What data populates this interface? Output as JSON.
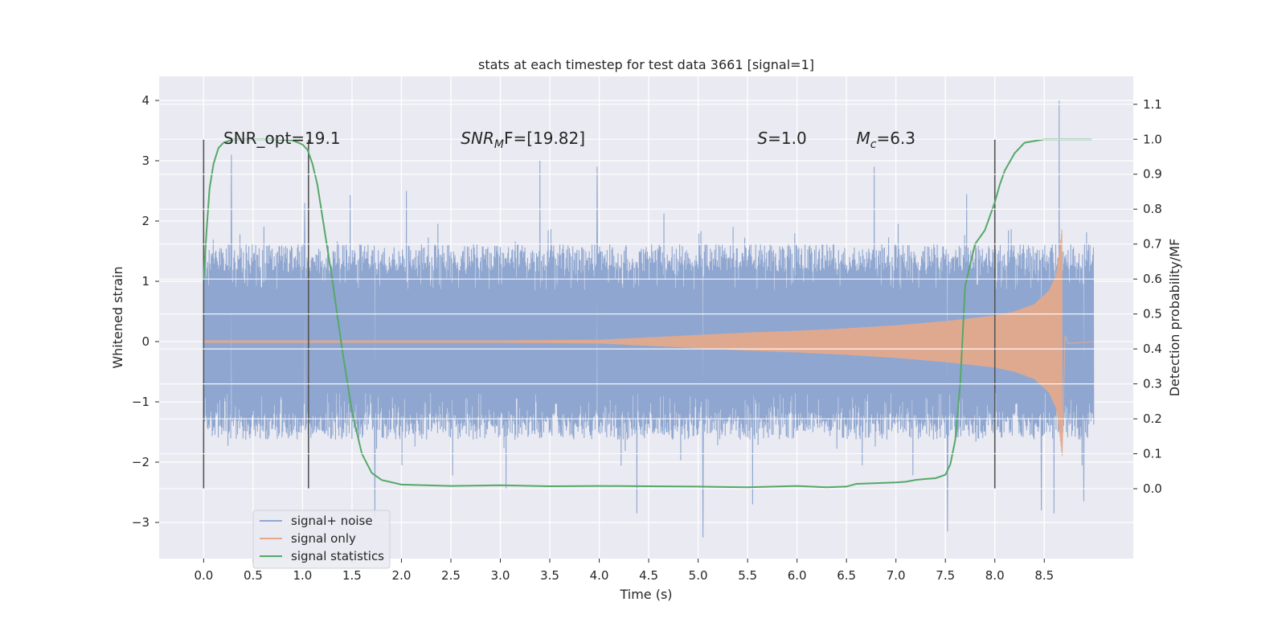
{
  "chart_data": {
    "type": "line",
    "title": "stats at each timestep for test data 3661 [signal=1]",
    "xlabel": "Time (s)",
    "ylabel": "Whitened strain",
    "ylabel_right": "Detection probability/MF",
    "xlim": [
      -0.45,
      9.4
    ],
    "ylim": [
      -3.6,
      4.4
    ],
    "ylim_right": [
      -0.2,
      1.18
    ],
    "x_ticks": [
      0.0,
      0.5,
      1.0,
      1.5,
      2.0,
      2.5,
      3.0,
      3.5,
      4.0,
      4.5,
      5.0,
      5.5,
      6.0,
      6.5,
      7.0,
      7.5,
      8.0,
      8.5
    ],
    "x_tick_labels": [
      "0.0",
      "0.5",
      "1.0",
      "1.5",
      "2.0",
      "2.5",
      "3.0",
      "3.5",
      "4.0",
      "4.5",
      "5.0",
      "5.5",
      "6.0",
      "6.5",
      "7.0",
      "7.5",
      "8.0",
      "8.5"
    ],
    "y_ticks": [
      4,
      3,
      2,
      1,
      0,
      -1,
      -2,
      -3
    ],
    "y_tick_labels": [
      "4",
      "3",
      "2",
      "1",
      "0",
      "−1",
      "−2",
      "−3"
    ],
    "y_right_ticks": [
      1.1,
      1.0,
      0.9,
      0.8,
      0.7,
      0.6,
      0.5,
      0.4,
      0.3,
      0.2,
      0.1,
      0.0
    ],
    "y_right_tick_labels": [
      "1.1",
      "1.0",
      "0.9",
      "0.8",
      "0.7",
      "0.6",
      "0.5",
      "0.4",
      "0.3",
      "0.2",
      "0.1",
      "0.0"
    ],
    "grid": true,
    "legend_position": "lower-left",
    "noise": {
      "x_start": 0.0,
      "x_end": 9.0,
      "band": 1.55,
      "peaks": [
        {
          "x": 0.28,
          "y": 3.1
        },
        {
          "x": 1.02,
          "y": 2.3
        },
        {
          "x": 2.05,
          "y": 2.5
        },
        {
          "x": 3.4,
          "y": 3.0
        },
        {
          "x": 3.98,
          "y": 2.9
        },
        {
          "x": 5.05,
          "y": -3.25
        },
        {
          "x": 5.55,
          "y": -2.7
        },
        {
          "x": 7.52,
          "y": -3.15
        },
        {
          "x": 8.65,
          "y": 4.0
        },
        {
          "x": 1.73,
          "y": -2.9
        },
        {
          "x": 8.47,
          "y": -2.8
        },
        {
          "x": 8.6,
          "y": -2.85
        },
        {
          "x": 4.38,
          "y": -2.85
        },
        {
          "x": 6.78,
          "y": 2.9
        },
        {
          "x": 8.9,
          "y": -2.65
        }
      ]
    },
    "signal_envelope": {
      "x": [
        0.0,
        2.0,
        3.0,
        4.0,
        4.5,
        5.0,
        5.5,
        6.0,
        6.5,
        7.0,
        7.5,
        8.0,
        8.2,
        8.4,
        8.55,
        8.62,
        8.66,
        8.68
      ],
      "amp": [
        0.02,
        0.02,
        0.02,
        0.03,
        0.07,
        0.11,
        0.15,
        0.18,
        0.22,
        0.27,
        0.34,
        0.43,
        0.5,
        0.62,
        0.85,
        1.1,
        1.6,
        1.9
      ]
    },
    "signal_end": 8.68,
    "series": [
      {
        "name": "signal+ noise",
        "color": "#8fa7d0"
      },
      {
        "name": "signal only",
        "color": "#e4a98c"
      },
      {
        "name": "signal statistics",
        "color": "#55a868"
      }
    ],
    "statistics": {
      "x": [
        0.0,
        0.03,
        0.06,
        0.1,
        0.15,
        0.2,
        0.3,
        0.5,
        0.7,
        0.9,
        1.0,
        1.05,
        1.1,
        1.15,
        1.2,
        1.3,
        1.4,
        1.5,
        1.6,
        1.7,
        1.8,
        2.0,
        2.5,
        3.0,
        3.5,
        4.0,
        4.5,
        5.0,
        5.5,
        6.0,
        6.3,
        6.5,
        6.6,
        6.8,
        7.0,
        7.1,
        7.2,
        7.3,
        7.4,
        7.5,
        7.55,
        7.6,
        7.65,
        7.7,
        7.8,
        7.9,
        8.0,
        8.05,
        8.1,
        8.2,
        8.3,
        8.5,
        8.7,
        8.9
      ],
      "values": [
        0.6,
        0.74,
        0.86,
        0.93,
        0.975,
        0.99,
        1.0,
        1.0,
        1.0,
        0.997,
        0.985,
        0.97,
        0.93,
        0.87,
        0.78,
        0.6,
        0.4,
        0.22,
        0.1,
        0.045,
        0.025,
        0.012,
        0.008,
        0.01,
        0.007,
        0.008,
        0.007,
        0.006,
        0.004,
        0.008,
        0.004,
        0.006,
        0.014,
        0.016,
        0.018,
        0.02,
        0.025,
        0.028,
        0.03,
        0.04,
        0.07,
        0.14,
        0.3,
        0.58,
        0.7,
        0.74,
        0.82,
        0.87,
        0.91,
        0.96,
        0.99,
        1.0,
        1.0,
        1.0
      ],
      "end": 8.98
    },
    "vertical_lines": [
      0.0,
      1.06,
      8.0
    ],
    "annotations": [
      {
        "id": "snr-opt",
        "text": "SNR_opt=19.1",
        "x": 0.2
      },
      {
        "id": "snr-mf",
        "text": "SNRMF=[19.82]",
        "x": 2.6,
        "pre": "SNR",
        "sub": "M",
        "post": "F=[19.82]"
      },
      {
        "id": "s-value",
        "text": "S=1.0",
        "x": 5.6,
        "pre": "S",
        "post": "=1.0"
      },
      {
        "id": "mc-value",
        "text": "Mc=6.3",
        "x": 6.6,
        "pre": "M",
        "sub": "c",
        "post": "=6.3"
      }
    ],
    "annotation_y": 3.28
  }
}
